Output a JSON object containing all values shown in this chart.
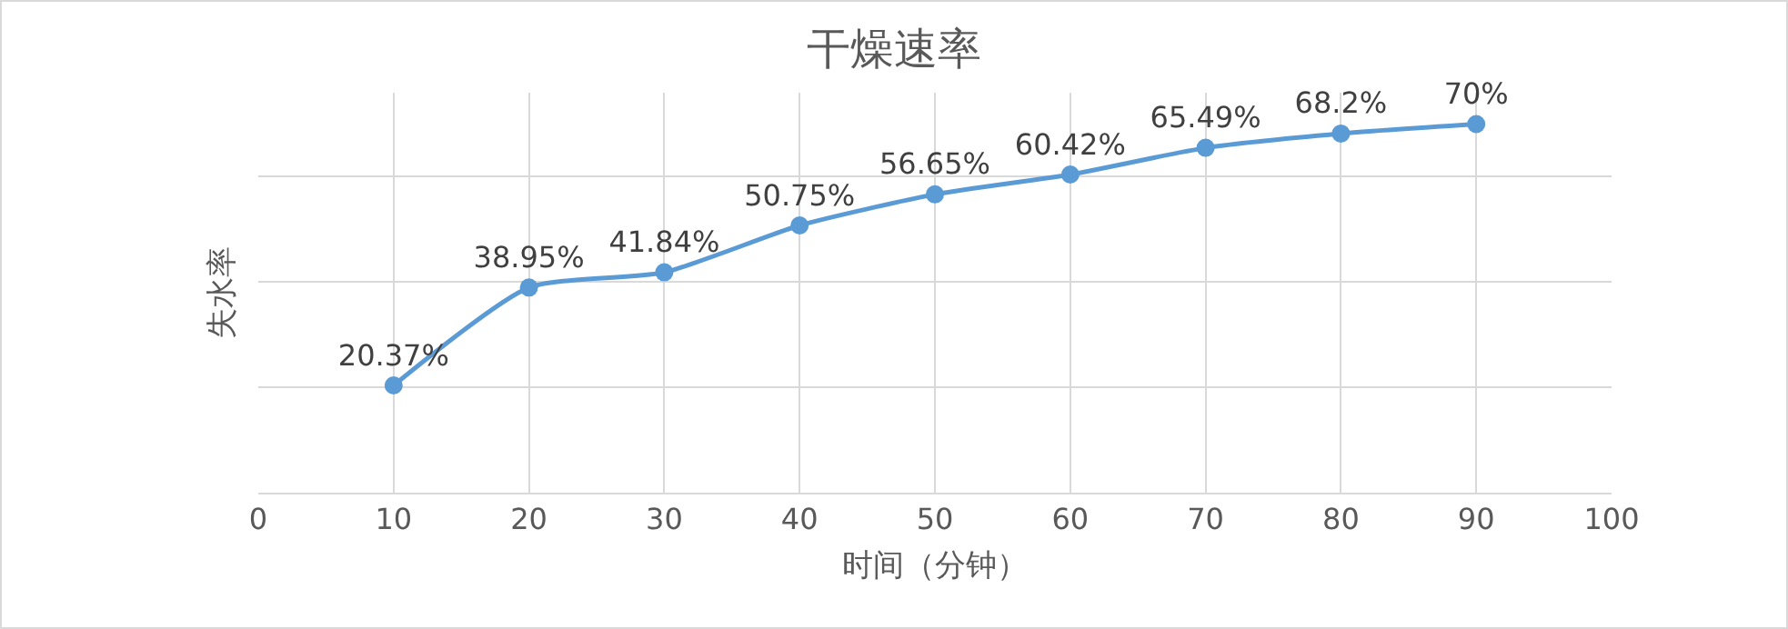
{
  "chart_data": {
    "type": "line",
    "title": "干燥速率",
    "xlabel": "时间（分钟）",
    "ylabel": "失水率",
    "x": [
      10,
      20,
      30,
      40,
      50,
      60,
      70,
      80,
      90
    ],
    "series": [
      {
        "color": "#5b9bd5",
        "values": [
          20.37,
          38.95,
          41.84,
          50.75,
          56.65,
          60.42,
          65.49,
          68.2,
          70
        ],
        "value_labels": [
          "20.37%",
          "38.95%",
          "41.84%",
          "50.75%",
          "56.65%",
          "60.42%",
          "65.49%",
          "68.2%",
          "70%"
        ]
      }
    ],
    "xlim": [
      0,
      100
    ],
    "xticks": [
      0,
      10,
      20,
      30,
      40,
      50,
      60,
      70,
      80,
      90,
      100
    ],
    "tick_labels": "x",
    "grid": true,
    "marker": "circle",
    "line_style": "solid"
  }
}
